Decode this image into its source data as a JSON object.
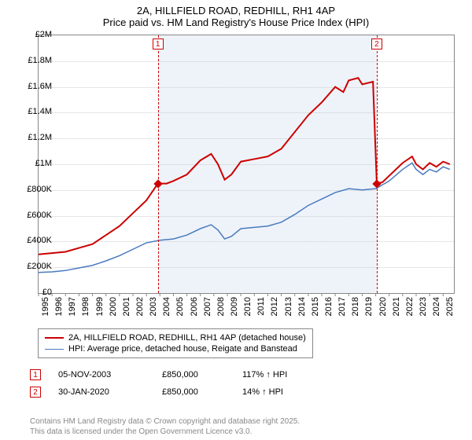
{
  "title": {
    "line1": "2A, HILLFIELD ROAD, REDHILL, RH1 4AP",
    "line2": "Price paid vs. HM Land Registry's House Price Index (HPI)"
  },
  "chart": {
    "type": "line",
    "background_color": "#ffffff",
    "shaded_color": "#eef3f9",
    "grid_color": "#cccccc",
    "axis_color": "#888888",
    "x": {
      "min": 1995,
      "max": 2025.8,
      "ticks": [
        1995,
        1996,
        1997,
        1998,
        1999,
        2000,
        2001,
        2002,
        2003,
        2004,
        2005,
        2006,
        2007,
        2008,
        2009,
        2010,
        2011,
        2012,
        2013,
        2014,
        2015,
        2016,
        2017,
        2018,
        2019,
        2020,
        2021,
        2022,
        2023,
        2024,
        2025
      ],
      "label_fontsize": 11
    },
    "y": {
      "min": 0,
      "max": 2000000,
      "ticks": [
        0,
        200000,
        400000,
        600000,
        800000,
        1000000,
        1200000,
        1400000,
        1600000,
        1800000,
        2000000
      ],
      "tick_labels": [
        "£0",
        "£200K",
        "£400K",
        "£600K",
        "£800K",
        "£1M",
        "£1.2M",
        "£1.4M",
        "£1.6M",
        "£1.8M",
        "£2M"
      ],
      "label_fontsize": 11
    },
    "shaded_ranges": [
      {
        "from": 2003.85,
        "to": 2020.08
      }
    ],
    "series": [
      {
        "name": "property",
        "color": "#cc0000",
        "width": 2,
        "points": [
          [
            1995,
            300000
          ],
          [
            1996,
            310000
          ],
          [
            1997,
            320000
          ],
          [
            1998,
            350000
          ],
          [
            1999,
            380000
          ],
          [
            2000,
            450000
          ],
          [
            2001,
            520000
          ],
          [
            2002,
            620000
          ],
          [
            2003,
            720000
          ],
          [
            2003.85,
            850000
          ],
          [
            2004.5,
            850000
          ],
          [
            2005,
            870000
          ],
          [
            2006,
            920000
          ],
          [
            2007,
            1030000
          ],
          [
            2007.8,
            1080000
          ],
          [
            2008.3,
            1000000
          ],
          [
            2008.8,
            880000
          ],
          [
            2009.3,
            920000
          ],
          [
            2010,
            1020000
          ],
          [
            2011,
            1040000
          ],
          [
            2012,
            1060000
          ],
          [
            2013,
            1120000
          ],
          [
            2014,
            1250000
          ],
          [
            2015,
            1380000
          ],
          [
            2016,
            1480000
          ],
          [
            2017,
            1600000
          ],
          [
            2017.6,
            1560000
          ],
          [
            2018,
            1650000
          ],
          [
            2018.7,
            1670000
          ],
          [
            2019,
            1620000
          ],
          [
            2019.8,
            1640000
          ],
          [
            2020.08,
            850000
          ],
          [
            2020.5,
            860000
          ],
          [
            2021,
            910000
          ],
          [
            2022,
            1010000
          ],
          [
            2022.7,
            1060000
          ],
          [
            2023,
            1000000
          ],
          [
            2023.5,
            960000
          ],
          [
            2024,
            1010000
          ],
          [
            2024.5,
            980000
          ],
          [
            2025,
            1020000
          ],
          [
            2025.5,
            1000000
          ]
        ]
      },
      {
        "name": "hpi",
        "color": "#4a7bc0",
        "width": 1.5,
        "points": [
          [
            1995,
            160000
          ],
          [
            1996,
            165000
          ],
          [
            1997,
            175000
          ],
          [
            1998,
            195000
          ],
          [
            1999,
            215000
          ],
          [
            2000,
            250000
          ],
          [
            2001,
            290000
          ],
          [
            2002,
            340000
          ],
          [
            2003,
            390000
          ],
          [
            2004,
            410000
          ],
          [
            2005,
            420000
          ],
          [
            2006,
            450000
          ],
          [
            2007,
            500000
          ],
          [
            2007.8,
            530000
          ],
          [
            2008.3,
            490000
          ],
          [
            2008.8,
            420000
          ],
          [
            2009.3,
            440000
          ],
          [
            2010,
            500000
          ],
          [
            2011,
            510000
          ],
          [
            2012,
            520000
          ],
          [
            2013,
            550000
          ],
          [
            2014,
            610000
          ],
          [
            2015,
            680000
          ],
          [
            2016,
            730000
          ],
          [
            2017,
            780000
          ],
          [
            2018,
            810000
          ],
          [
            2019,
            800000
          ],
          [
            2020,
            810000
          ],
          [
            2021,
            870000
          ],
          [
            2022,
            960000
          ],
          [
            2022.7,
            1010000
          ],
          [
            2023,
            960000
          ],
          [
            2023.5,
            920000
          ],
          [
            2024,
            960000
          ],
          [
            2024.5,
            940000
          ],
          [
            2025,
            980000
          ],
          [
            2025.5,
            960000
          ]
        ]
      }
    ],
    "markers": [
      {
        "n": 1,
        "year": 2003.85,
        "price": 850000,
        "color": "#cc0000"
      },
      {
        "n": 2,
        "year": 2020.08,
        "price": 850000,
        "color": "#cc0000"
      }
    ]
  },
  "legend": {
    "items": [
      {
        "color": "#cc0000",
        "width": 2,
        "label": "2A, HILLFIELD ROAD, REDHILL, RH1 4AP (detached house)"
      },
      {
        "color": "#4a7bc0",
        "width": 1.5,
        "label": "HPI: Average price, detached house, Reigate and Banstead"
      }
    ]
  },
  "sales": [
    {
      "n": "1",
      "date": "05-NOV-2003",
      "price": "£850,000",
      "hpi": "117% ↑ HPI",
      "color": "#cc0000"
    },
    {
      "n": "2",
      "date": "30-JAN-2020",
      "price": "£850,000",
      "hpi": "14% ↑ HPI",
      "color": "#cc0000"
    }
  ],
  "footer": {
    "line1": "Contains HM Land Registry data © Crown copyright and database right 2025.",
    "line2": "This data is licensed under the Open Government Licence v3.0."
  }
}
